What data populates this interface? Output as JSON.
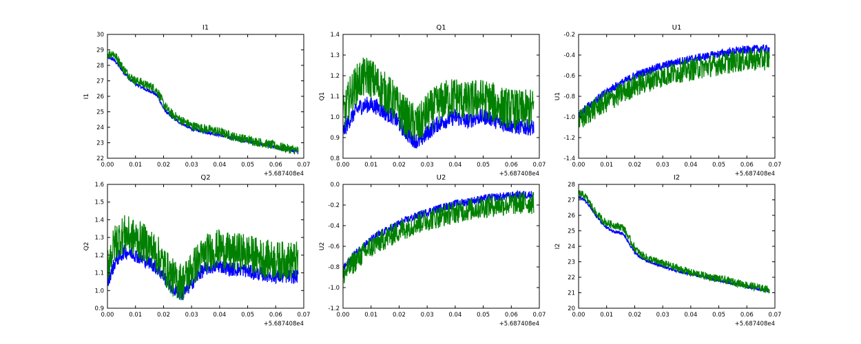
{
  "colors": {
    "series_a": "#0000ff",
    "series_b": "#008000"
  },
  "chart_data": [
    {
      "type": "line",
      "title": "I1",
      "ylabel": "I1",
      "xlim": [
        0.0,
        0.07
      ],
      "ylim": [
        22,
        30
      ],
      "xticks": [
        "0.00",
        "0.01",
        "0.02",
        "0.03",
        "0.04",
        "0.05",
        "0.06",
        "0.07"
      ],
      "yticks": [
        "22",
        "23",
        "24",
        "25",
        "26",
        "27",
        "28",
        "29",
        "30"
      ],
      "x_offset_label": "+5.687408e4",
      "x": [
        0.0,
        0.002,
        0.004,
        0.006,
        0.008,
        0.01,
        0.012,
        0.014,
        0.016,
        0.018,
        0.02,
        0.022,
        0.025,
        0.03,
        0.035,
        0.04,
        0.045,
        0.05,
        0.055,
        0.06,
        0.065,
        0.068
      ],
      "series": [
        {
          "values": [
            28.5,
            28.4,
            28.0,
            27.5,
            27.1,
            26.8,
            26.6,
            26.4,
            26.3,
            26.0,
            25.2,
            24.8,
            24.4,
            23.9,
            23.7,
            23.5,
            23.3,
            23.1,
            22.9,
            22.7,
            22.5,
            22.4
          ],
          "noise": 0.12
        },
        {
          "values": [
            28.7,
            28.8,
            28.3,
            27.7,
            27.3,
            27.0,
            26.9,
            26.7,
            26.6,
            26.3,
            25.5,
            25.0,
            24.6,
            24.1,
            23.9,
            23.7,
            23.4,
            23.2,
            23.0,
            22.8,
            22.6,
            22.5
          ],
          "noise": 0.3
        }
      ]
    },
    {
      "type": "line",
      "title": "Q1",
      "ylabel": "Q1",
      "xlim": [
        0.0,
        0.07
      ],
      "ylim": [
        0.8,
        1.4
      ],
      "xticks": [
        "0.00",
        "0.01",
        "0.02",
        "0.03",
        "0.04",
        "0.05",
        "0.06",
        "0.07"
      ],
      "yticks": [
        "0.8",
        "0.9",
        "1.0",
        "1.1",
        "1.2",
        "1.3",
        "1.4"
      ],
      "x_offset_label": "+5.687408e4",
      "x": [
        0.0,
        0.003,
        0.006,
        0.009,
        0.012,
        0.015,
        0.018,
        0.021,
        0.024,
        0.027,
        0.03,
        0.033,
        0.036,
        0.04,
        0.044,
        0.048,
        0.052,
        0.056,
        0.06,
        0.064,
        0.068
      ],
      "series": [
        {
          "values": [
            0.93,
            1.0,
            1.05,
            1.06,
            1.05,
            1.02,
            1.0,
            0.95,
            0.9,
            0.88,
            0.92,
            0.96,
            0.98,
            1.0,
            0.98,
            1.0,
            1.0,
            0.97,
            0.96,
            0.95,
            0.95
          ],
          "noise": 0.04
        },
        {
          "values": [
            1.0,
            1.12,
            1.18,
            1.2,
            1.16,
            1.12,
            1.08,
            1.02,
            0.98,
            0.96,
            1.02,
            1.05,
            1.08,
            1.1,
            1.07,
            1.09,
            1.08,
            1.05,
            1.04,
            1.03,
            1.04
          ],
          "noise": 0.1
        }
      ]
    },
    {
      "type": "line",
      "title": "U1",
      "ylabel": "U1",
      "xlim": [
        0.0,
        0.07
      ],
      "ylim": [
        -1.4,
        -0.2
      ],
      "xticks": [
        "0.00",
        "0.01",
        "0.02",
        "0.03",
        "0.04",
        "0.05",
        "0.06",
        "0.07"
      ],
      "yticks": [
        "-1.4",
        "-1.2",
        "-1.0",
        "-0.8",
        "-0.6",
        "-0.4",
        "-0.2"
      ],
      "x_offset_label": "+5.687408e4",
      "x": [
        0.0,
        0.004,
        0.008,
        0.012,
        0.016,
        0.02,
        0.024,
        0.028,
        0.032,
        0.036,
        0.04,
        0.044,
        0.048,
        0.052,
        0.056,
        0.06,
        0.064,
        0.068
      ],
      "series": [
        {
          "values": [
            -0.98,
            -0.88,
            -0.8,
            -0.72,
            -0.66,
            -0.6,
            -0.56,
            -0.52,
            -0.49,
            -0.46,
            -0.44,
            -0.42,
            -0.4,
            -0.38,
            -0.36,
            -0.35,
            -0.34,
            -0.34
          ],
          "noise": 0.04
        },
        {
          "values": [
            -1.05,
            -0.95,
            -0.88,
            -0.82,
            -0.76,
            -0.7,
            -0.66,
            -0.62,
            -0.59,
            -0.56,
            -0.54,
            -0.52,
            -0.5,
            -0.48,
            -0.46,
            -0.45,
            -0.44,
            -0.44
          ],
          "noise": 0.11
        }
      ]
    },
    {
      "type": "line",
      "title": "Q2",
      "ylabel": "Q2",
      "xlim": [
        0.0,
        0.07
      ],
      "ylim": [
        0.9,
        1.6
      ],
      "xticks": [
        "0.00",
        "0.01",
        "0.02",
        "0.03",
        "0.04",
        "0.05",
        "0.06",
        "0.07"
      ],
      "yticks": [
        "0.9",
        "1.0",
        "1.1",
        "1.2",
        "1.3",
        "1.4",
        "1.5",
        "1.6"
      ],
      "x_offset_label": "+5.687408e4",
      "x": [
        0.0,
        0.003,
        0.006,
        0.009,
        0.012,
        0.015,
        0.018,
        0.021,
        0.024,
        0.027,
        0.03,
        0.033,
        0.036,
        0.04,
        0.044,
        0.048,
        0.052,
        0.056,
        0.06,
        0.064,
        0.068
      ],
      "series": [
        {
          "values": [
            1.05,
            1.17,
            1.22,
            1.21,
            1.18,
            1.16,
            1.12,
            1.06,
            1.0,
            0.98,
            1.04,
            1.1,
            1.13,
            1.14,
            1.12,
            1.12,
            1.1,
            1.09,
            1.08,
            1.08,
            1.08
          ],
          "noise": 0.04
        },
        {
          "values": [
            1.15,
            1.28,
            1.32,
            1.3,
            1.28,
            1.25,
            1.2,
            1.12,
            1.06,
            1.05,
            1.12,
            1.18,
            1.22,
            1.24,
            1.21,
            1.22,
            1.2,
            1.18,
            1.17,
            1.17,
            1.17
          ],
          "noise": 0.11
        }
      ]
    },
    {
      "type": "line",
      "title": "U2",
      "ylabel": "U2",
      "xlim": [
        0.0,
        0.07
      ],
      "ylim": [
        -1.2,
        0.0
      ],
      "xticks": [
        "0.00",
        "0.01",
        "0.02",
        "0.03",
        "0.04",
        "0.05",
        "0.06",
        "0.07"
      ],
      "yticks": [
        "-1.2",
        "-1.0",
        "-0.8",
        "-0.6",
        "-0.4",
        "-0.2",
        "0.0"
      ],
      "x_offset_label": "+5.687408e4",
      "x": [
        0.0,
        0.004,
        0.008,
        0.012,
        0.016,
        0.02,
        0.024,
        0.028,
        0.032,
        0.036,
        0.04,
        0.044,
        0.048,
        0.052,
        0.056,
        0.06,
        0.064,
        0.068
      ],
      "series": [
        {
          "values": [
            -0.82,
            -0.68,
            -0.58,
            -0.5,
            -0.44,
            -0.38,
            -0.33,
            -0.29,
            -0.25,
            -0.22,
            -0.19,
            -0.17,
            -0.15,
            -0.13,
            -0.12,
            -0.11,
            -0.1,
            -0.1
          ],
          "noise": 0.04
        },
        {
          "values": [
            -0.88,
            -0.75,
            -0.65,
            -0.57,
            -0.51,
            -0.45,
            -0.4,
            -0.36,
            -0.33,
            -0.3,
            -0.27,
            -0.25,
            -0.23,
            -0.21,
            -0.2,
            -0.19,
            -0.18,
            -0.18
          ],
          "noise": 0.11
        }
      ]
    },
    {
      "type": "line",
      "title": "I2",
      "ylabel": "I2",
      "xlim": [
        0.0,
        0.07
      ],
      "ylim": [
        20,
        28
      ],
      "xticks": [
        "0.00",
        "0.01",
        "0.02",
        "0.03",
        "0.04",
        "0.05",
        "0.06",
        "0.07"
      ],
      "yticks": [
        "20",
        "21",
        "22",
        "23",
        "24",
        "25",
        "26",
        "27",
        "28"
      ],
      "x_offset_label": "+5.687408e4",
      "x": [
        0.0,
        0.002,
        0.004,
        0.006,
        0.008,
        0.01,
        0.012,
        0.014,
        0.016,
        0.018,
        0.02,
        0.022,
        0.025,
        0.03,
        0.035,
        0.04,
        0.045,
        0.05,
        0.055,
        0.06,
        0.065,
        0.068
      ],
      "series": [
        {
          "values": [
            27.2,
            27.0,
            26.6,
            26.0,
            25.6,
            25.2,
            25.0,
            24.9,
            24.8,
            24.2,
            23.6,
            23.3,
            23.0,
            22.7,
            22.4,
            22.2,
            22.0,
            21.8,
            21.6,
            21.4,
            21.2,
            21.1
          ],
          "noise": 0.1
        },
        {
          "values": [
            27.4,
            27.3,
            26.8,
            26.2,
            25.8,
            25.5,
            25.4,
            25.3,
            25.2,
            24.5,
            23.9,
            23.5,
            23.2,
            22.9,
            22.6,
            22.3,
            22.1,
            21.9,
            21.7,
            21.5,
            21.3,
            21.2
          ],
          "noise": 0.25
        }
      ]
    }
  ]
}
